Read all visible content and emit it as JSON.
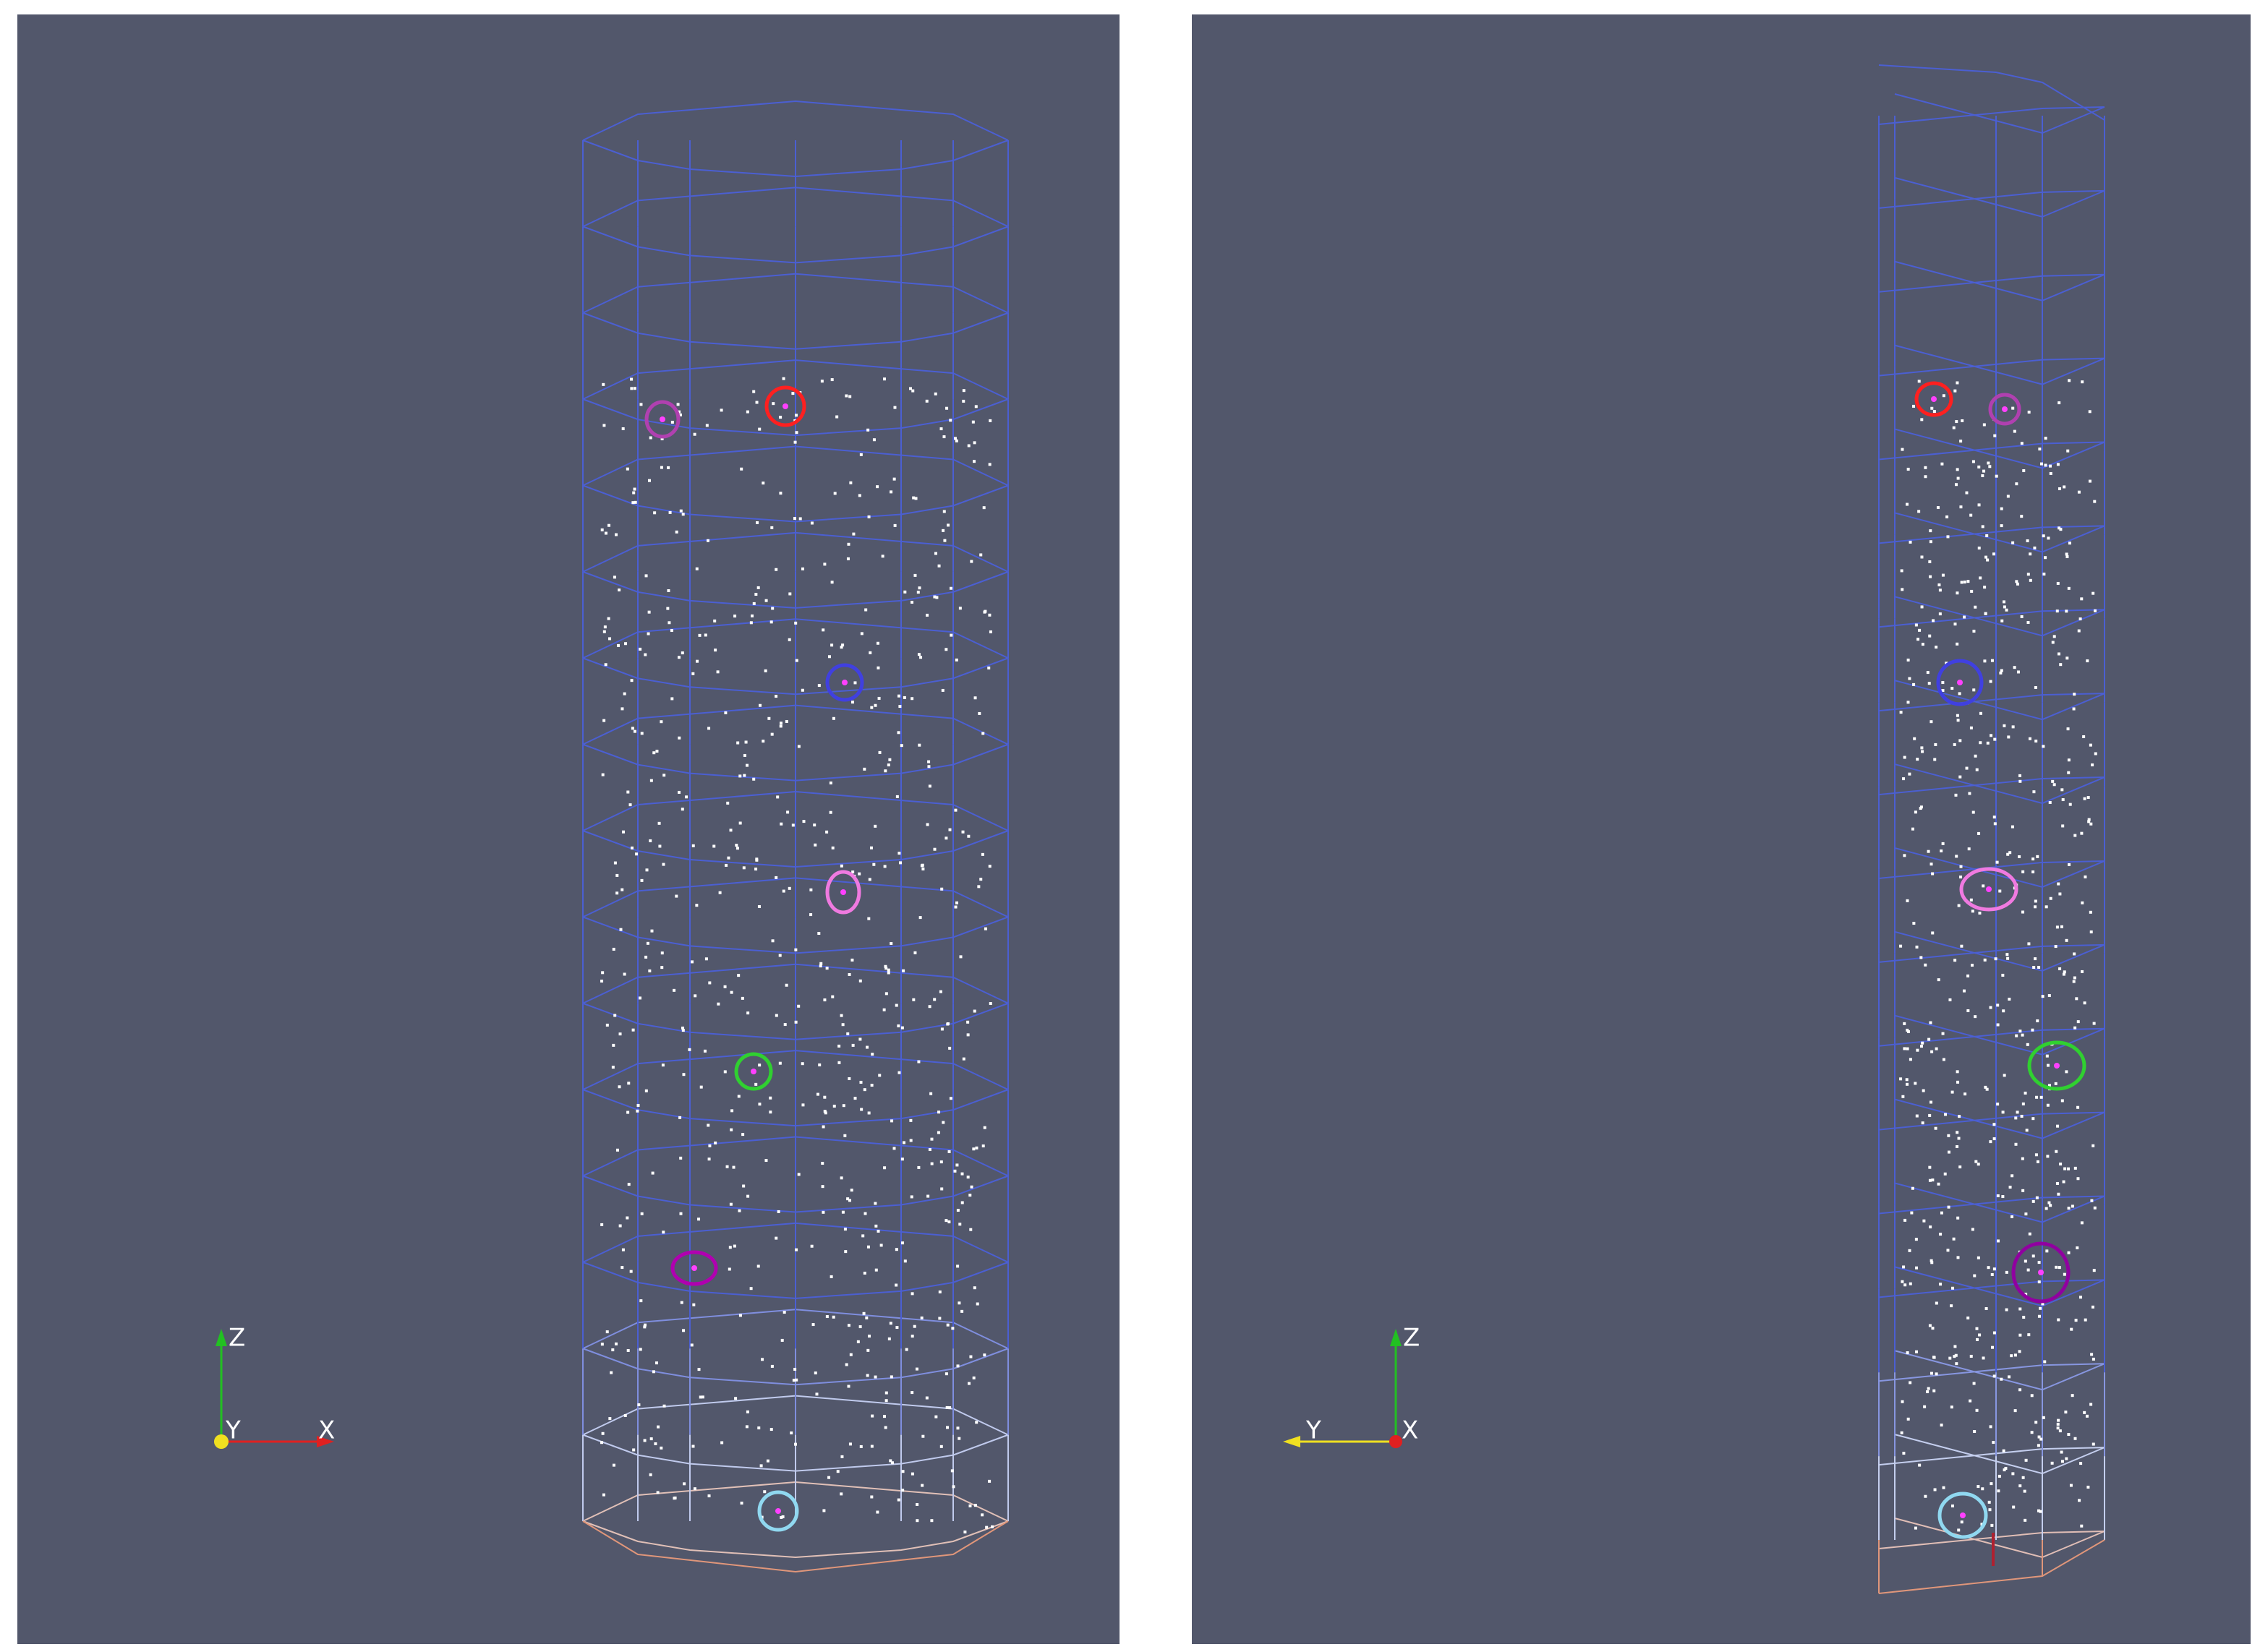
{
  "viewports": [
    {
      "axes": {
        "z": "Z",
        "y": "Y",
        "x": "X"
      }
    },
    {
      "axes": {
        "z": "Z",
        "y": "Y",
        "x": "X"
      }
    }
  ]
}
